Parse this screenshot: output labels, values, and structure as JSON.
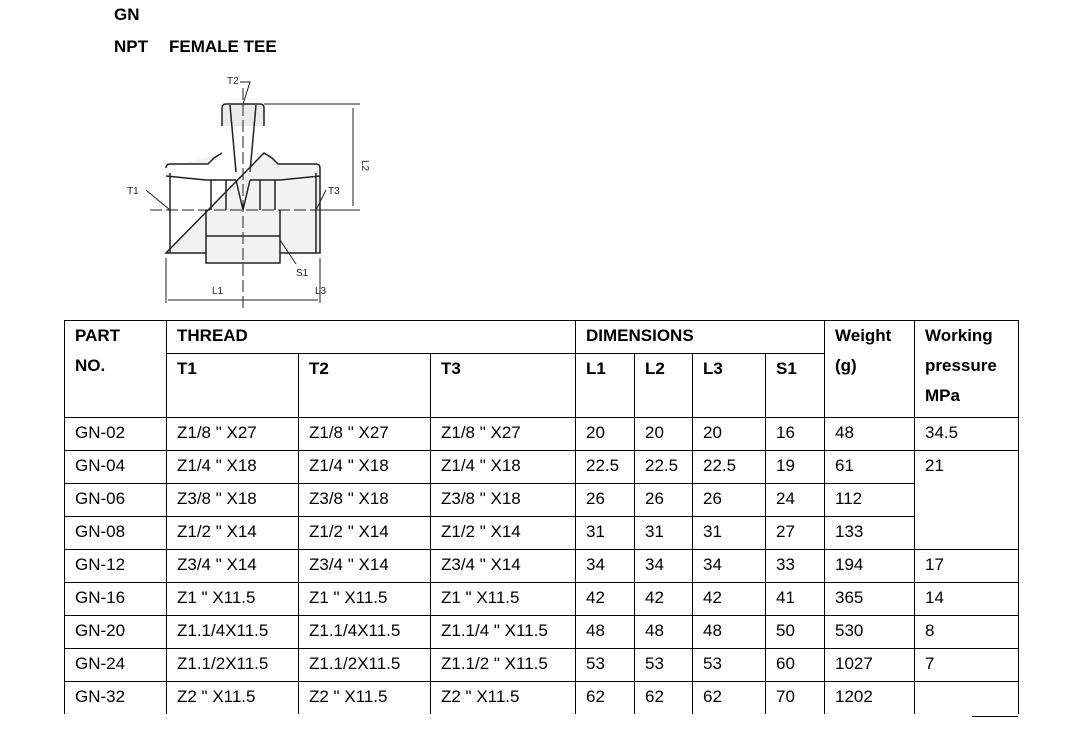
{
  "header": {
    "series": "GN",
    "type": "NPT",
    "name": "FEMALE TEE"
  },
  "drawing": {
    "labels": [
      "T2",
      "T1",
      "T3",
      "L2",
      "S1",
      "L1",
      "L3"
    ]
  },
  "table": {
    "h1": {
      "part": "PART",
      "part2": "NO.",
      "thread": "THREAD",
      "dims": "DIMENSIONS",
      "weight": "Weight",
      "weight2": "(g)",
      "wp": "Working",
      "wp2": "pressure",
      "wp3": "MPa"
    },
    "h2": [
      "T1",
      "T2",
      "T3",
      "L1",
      "L2",
      "L3",
      "S1"
    ],
    "rows": [
      [
        "GN-02",
        "Z1/8 \" X27",
        "Z1/8 \" X27",
        "Z1/8 \" X27",
        "20",
        "20",
        "20",
        "16",
        "48",
        "34.5"
      ],
      [
        "GN-04",
        "Z1/4 \" X18",
        "Z1/4 \" X18",
        "Z1/4 \" X18",
        "22.5",
        "22.5",
        "22.5",
        "19",
        "61",
        "21"
      ],
      [
        "GN-06",
        "Z3/8 \" X18",
        "Z3/8 \" X18",
        "Z3/8 \" X18",
        "26",
        "26",
        "26",
        "24",
        "112",
        ""
      ],
      [
        "GN-08",
        "Z1/2 \" X14",
        "Z1/2 \" X14",
        "Z1/2 \" X14",
        "31",
        "31",
        "31",
        "27",
        "133",
        ""
      ],
      [
        "GN-12",
        "Z3/4 \" X14",
        "Z3/4 \" X14",
        "Z3/4 \" X14",
        "34",
        "34",
        "34",
        "33",
        "194",
        "17"
      ],
      [
        "GN-16",
        "Z1 \" X11.5",
        "Z1 \" X11.5",
        "Z1 \" X11.5",
        "42",
        "42",
        "42",
        "41",
        "365",
        "14"
      ],
      [
        "GN-20",
        "Z1.1/4X11.5",
        "Z1.1/4X11.5",
        "Z1.1/4 \" X11.5",
        "48",
        "48",
        "48",
        "50",
        "530",
        "8"
      ],
      [
        "GN-24",
        "Z1.1/2X11.5",
        "Z1.1/2X11.5",
        "Z1.1/2 \" X11.5",
        "53",
        "53",
        "53",
        "60",
        "1027",
        "7"
      ],
      [
        "GN-32",
        "Z2 \" X11.5",
        "Z2 \" X11.5",
        "Z2 \" X11.5",
        "62",
        "62",
        "62",
        "70",
        "1202",
        ""
      ]
    ]
  }
}
